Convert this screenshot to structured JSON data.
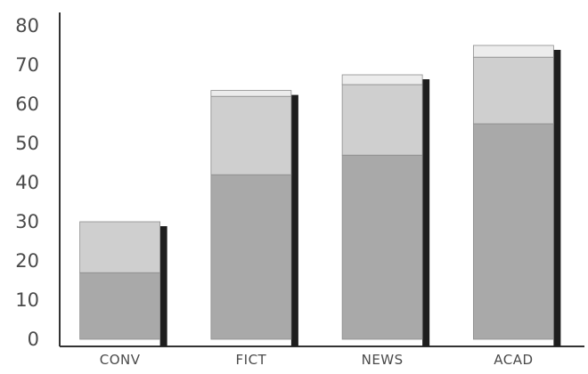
{
  "chart_data": {
    "type": "bar",
    "stacked": true,
    "categories": [
      "CONV",
      "FICT",
      "NEWS",
      "ACAD"
    ],
    "series": [
      {
        "values": [
          17,
          42,
          47,
          55
        ]
      },
      {
        "values": [
          13,
          20,
          18,
          17
        ]
      },
      {
        "values": [
          0,
          1.5,
          2.5,
          3
        ]
      }
    ],
    "ylim": [
      0,
      80
    ],
    "yticks": [
      0,
      10,
      20,
      30,
      40,
      50,
      60,
      70,
      80
    ],
    "grid": false,
    "legend": "none",
    "colors": [
      "#a9a9a9",
      "#cfcfcf",
      "#ececec"
    ],
    "shadow_color": "#1e1e1e"
  }
}
